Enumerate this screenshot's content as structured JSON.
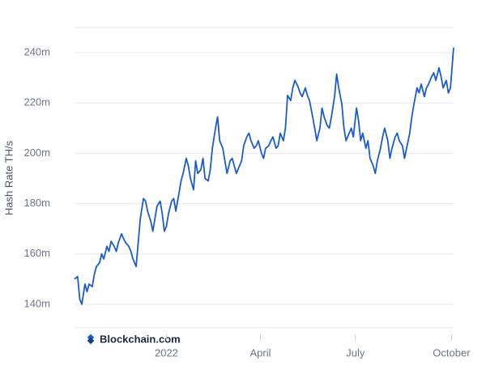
{
  "chart_data": {
    "type": "line",
    "y_label": "Hash Rate TH/s",
    "source": "Blockchain.com",
    "color": "#1b5bd0",
    "grid": true,
    "xlim": [
      -88,
      275
    ],
    "xticks": [
      {
        "value": 0,
        "label": "2022"
      },
      {
        "value": 90,
        "label": "April"
      },
      {
        "value": 181,
        "label": "July"
      },
      {
        "value": 273,
        "label": "October"
      }
    ],
    "ylim": [
      130,
      250
    ],
    "yticks": [
      {
        "value": 140,
        "label": "140m"
      },
      {
        "value": 160,
        "label": "160m"
      },
      {
        "value": 180,
        "label": "180m"
      },
      {
        "value": 200,
        "label": "200m"
      },
      {
        "value": 220,
        "label": "220m"
      },
      {
        "value": 240,
        "label": "240m"
      }
    ],
    "x": [
      -88,
      -85,
      -83,
      -81,
      -78,
      -76,
      -74,
      -71,
      -69,
      -67,
      -64,
      -62,
      -60,
      -57,
      -55,
      -53,
      -50,
      -48,
      -46,
      -43,
      -41,
      -39,
      -36,
      -34,
      -32,
      -29,
      -27,
      -25,
      -22,
      -20,
      -18,
      -15,
      -13,
      -11,
      -9,
      -6,
      -4,
      -2,
      0,
      2,
      5,
      7,
      9,
      12,
      14,
      16,
      19,
      21,
      23,
      26,
      28,
      30,
      33,
      35,
      37,
      40,
      42,
      44,
      47,
      49,
      51,
      54,
      56,
      58,
      61,
      63,
      65,
      67,
      70,
      72,
      74,
      77,
      79,
      81,
      84,
      86,
      88,
      91,
      93,
      95,
      98,
      100,
      102,
      105,
      107,
      109,
      112,
      114,
      116,
      119,
      121,
      123,
      126,
      128,
      130,
      133,
      135,
      137,
      140,
      142,
      144,
      147,
      149,
      151,
      154,
      156,
      158,
      161,
      163,
      165,
      168,
      170,
      172,
      175,
      177,
      179,
      182,
      184,
      186,
      188,
      191,
      193,
      195,
      198,
      200,
      202,
      205,
      207,
      209,
      212,
      214,
      216,
      219,
      221,
      223,
      226,
      228,
      230,
      233,
      235,
      237,
      240,
      242,
      244,
      247,
      249,
      251,
      254,
      256,
      258,
      261,
      263,
      265,
      268,
      270,
      272,
      275
    ],
    "values": [
      150,
      151,
      142,
      140,
      148,
      145,
      148,
      147,
      152,
      155,
      156.5,
      160,
      158,
      163,
      161,
      165,
      163,
      161,
      164.5,
      168,
      166,
      164.5,
      163,
      161,
      158,
      155,
      164.5,
      174,
      182,
      181,
      177,
      173,
      169,
      174,
      179,
      181,
      176,
      169,
      171,
      176,
      181,
      182,
      177,
      184,
      189,
      192,
      198,
      195,
      190,
      185.5,
      197,
      192,
      193.5,
      198,
      190,
      189,
      193.5,
      202,
      210,
      214.5,
      205,
      202,
      197,
      192,
      197,
      198,
      195,
      192,
      195,
      197,
      203,
      206.5,
      208,
      205,
      202,
      203,
      205,
      200,
      198,
      202,
      203,
      205,
      206.5,
      202,
      203,
      208,
      205,
      210,
      223,
      221,
      226,
      229,
      226.5,
      224,
      222.5,
      226,
      223,
      221,
      214.5,
      210,
      205,
      210,
      218,
      214.5,
      211,
      210,
      214.5,
      222.5,
      231.5,
      226,
      219.5,
      210,
      205,
      208,
      210,
      206.5,
      218,
      213,
      205,
      208,
      202,
      205,
      198,
      195,
      192,
      197,
      202,
      206.5,
      210,
      205,
      198,
      202,
      206.5,
      208,
      205,
      203,
      198,
      202,
      208,
      214.5,
      219.5,
      226,
      224,
      227.5,
      222.5,
      226,
      227.5,
      230.5,
      232,
      229,
      234,
      230.5,
      226,
      229,
      224,
      226,
      242
    ]
  }
}
